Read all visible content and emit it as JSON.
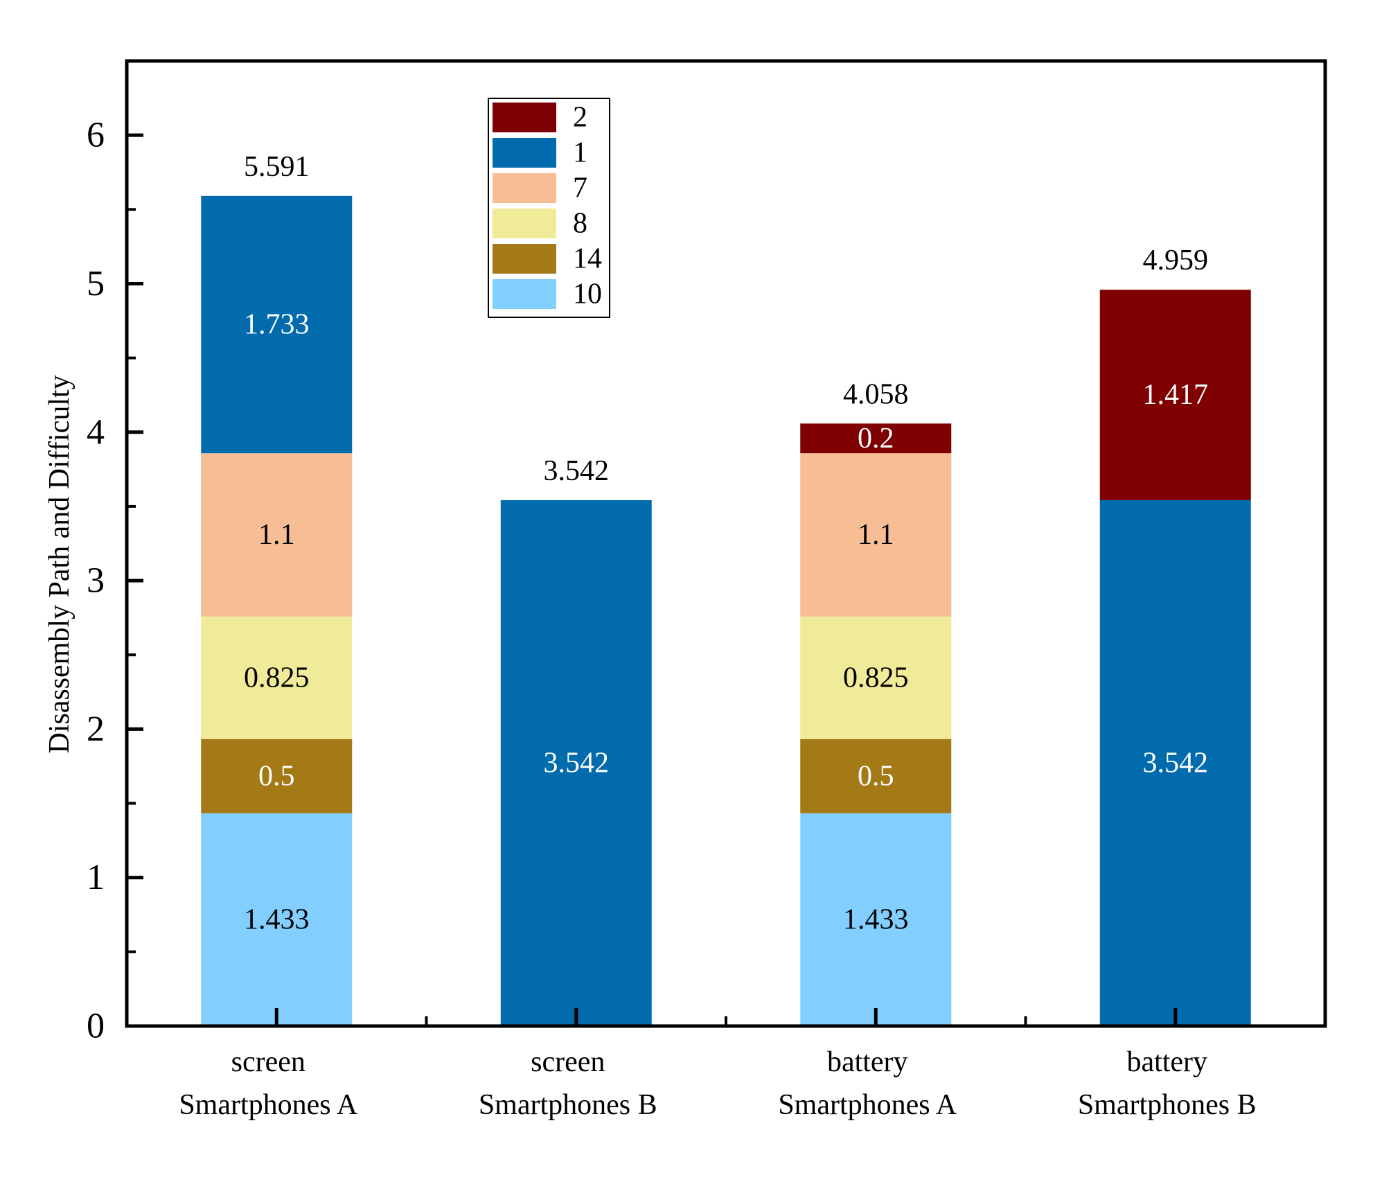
{
  "chart_data": {
    "type": "bar",
    "stacked": true,
    "ylabel": "Disassembly Path and Difficulty",
    "ylim": [
      0,
      6.5
    ],
    "yticks": [
      0,
      1,
      2,
      3,
      4,
      5,
      6
    ],
    "categories": [
      [
        "screen",
        "Smartphones A"
      ],
      [
        "screen",
        "Smartphones B"
      ],
      [
        "battery",
        "Smartphones A"
      ],
      [
        "battery",
        "Smartphones B"
      ]
    ],
    "series": [
      {
        "name": "10",
        "color": "#82ceff",
        "label_color": "#000000",
        "values": [
          1.433,
          0,
          1.433,
          0
        ],
        "labels": [
          "1.433",
          "",
          "1.433",
          ""
        ]
      },
      {
        "name": "14",
        "color": "#a37a15",
        "label_color": "#ffffff",
        "values": [
          0.5,
          0,
          0.5,
          0
        ],
        "labels": [
          "0.5",
          "",
          "0.5",
          ""
        ]
      },
      {
        "name": "8",
        "color": "#f0eb99",
        "label_color": "#000000",
        "values": [
          0.825,
          0,
          0.825,
          0
        ],
        "labels": [
          "0.825",
          "",
          "0.825",
          ""
        ]
      },
      {
        "name": "7",
        "color": "#f7be95",
        "label_color": "#000000",
        "values": [
          1.1,
          0,
          1.1,
          0
        ],
        "labels": [
          "1.1",
          "",
          "1.1",
          ""
        ]
      },
      {
        "name": "1",
        "color": "#026bad",
        "label_color": "#ffffff",
        "values": [
          1.733,
          3.542,
          0,
          3.542
        ],
        "labels": [
          "1.733",
          "3.542",
          "",
          "3.542"
        ]
      },
      {
        "name": "2",
        "color": "#7f0000",
        "label_color": "#ffffff",
        "values": [
          0,
          0,
          0.2,
          1.417
        ],
        "labels": [
          "",
          "",
          "0.2",
          "1.417"
        ]
      }
    ],
    "totals": [
      "5.591",
      "3.542",
      "4.058",
      "4.959"
    ],
    "legend": {
      "position": "top-left-center",
      "order": [
        "2",
        "1",
        "7",
        "8",
        "14",
        "10"
      ]
    }
  }
}
